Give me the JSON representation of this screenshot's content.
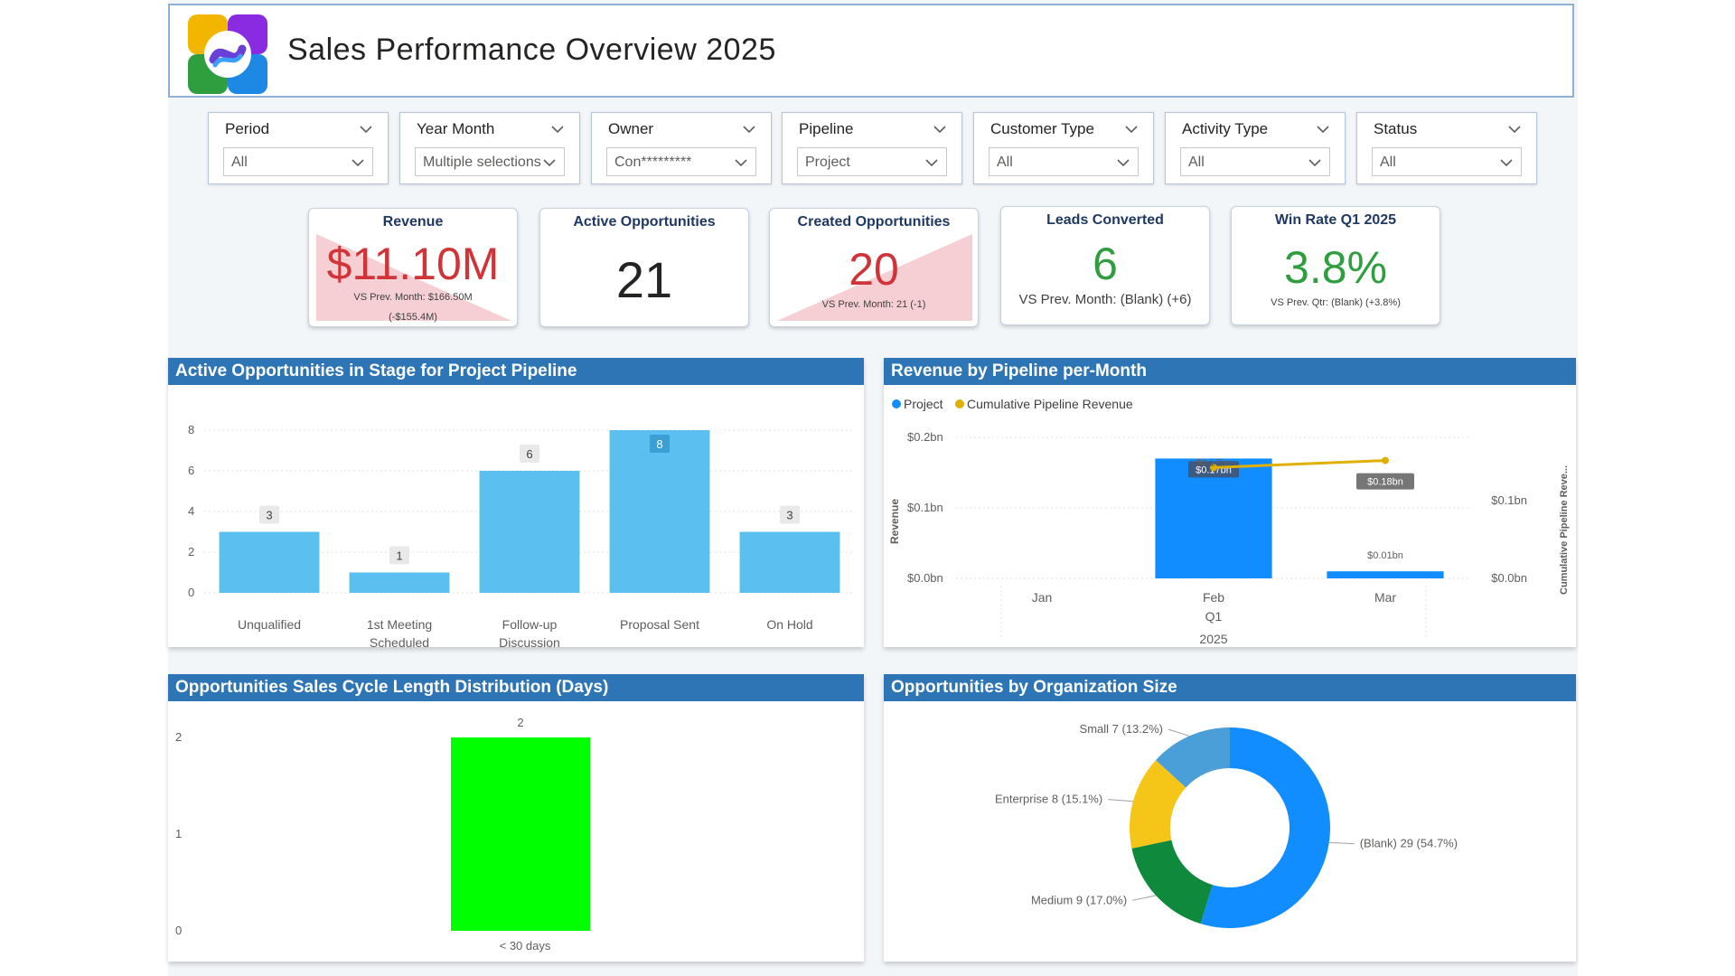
{
  "header": {
    "title": "Sales Performance Overview 2025"
  },
  "slicers": [
    {
      "label": "Period",
      "value": "All"
    },
    {
      "label": "Year Month",
      "value": "Multiple selections"
    },
    {
      "label": "Owner",
      "value": "Con*********"
    },
    {
      "label": "Pipeline",
      "value": "Project"
    },
    {
      "label": "Customer Type",
      "value": "All"
    },
    {
      "label": "Activity Type",
      "value": "All"
    },
    {
      "label": "Status",
      "value": "All"
    }
  ],
  "cards": {
    "revenue": {
      "title": "Revenue",
      "value": "$11.10M",
      "sub1": "VS Prev. Month: $166.50M",
      "sub2": "(-$155.4M)",
      "color": "#d13438"
    },
    "active": {
      "title": "Active Opportunities",
      "value": "21",
      "color": "#252423"
    },
    "created": {
      "title": "Created Opportunities",
      "value": "20",
      "sub1": "VS Prev. Month: 21 (-1)",
      "color": "#d13438"
    },
    "leads": {
      "title": "Leads Converted",
      "value": "6",
      "sub1": "VS Prev. Month: (Blank) (+6)",
      "color": "#2e9e3e"
    },
    "winrate": {
      "title": "Win Rate Q1 2025",
      "value": "3.8%",
      "sub1": "VS Prev. Qtr: (Blank) (+3.8%)",
      "color": "#2e9e3e"
    }
  },
  "panels": {
    "stage": {
      "title": "Active Opportunities in Stage for Project Pipeline"
    },
    "revenue_pipeline": {
      "title": "Revenue by Pipeline per-Month"
    },
    "cycle": {
      "title": "Opportunities Sales Cycle Length Distribution (Days)"
    },
    "orgsize": {
      "title": "Opportunities by Organization Size"
    }
  },
  "chart_data": [
    {
      "id": "stage",
      "type": "bar",
      "title": "Active Opportunities in Stage for Project Pipeline",
      "categories": [
        "Unqualified",
        "1st Meeting Scheduled",
        "Follow-up Discussion",
        "Proposal Sent",
        "On Hold"
      ],
      "category_lines": [
        [
          "Unqualified"
        ],
        [
          "1st Meeting",
          "Scheduled"
        ],
        [
          "Follow-up",
          "Discussion"
        ],
        [
          "Proposal Sent"
        ],
        [
          "On Hold"
        ]
      ],
      "values": [
        3,
        1,
        6,
        8,
        3
      ],
      "ylim": [
        0,
        8
      ],
      "yticks": [
        0,
        2,
        4,
        6,
        8
      ],
      "color": "#5bc0f0"
    },
    {
      "id": "revenue_pipeline",
      "type": "bar",
      "title": "Revenue by Pipeline per-Month",
      "legend": [
        "Project",
        "Cumulative Pipeline Revenue"
      ],
      "legend_colors": [
        "#118dff",
        "#e0b000"
      ],
      "categories": [
        "Jan",
        "Feb",
        "Mar"
      ],
      "quarter": "Q1",
      "year": "2025",
      "series": [
        {
          "name": "Project",
          "values": [
            0,
            0.17,
            0.01
          ],
          "labels": [
            "",
            "$0.17bn",
            "$0.01bn"
          ]
        },
        {
          "name": "Cumulative Pipeline Revenue",
          "values": [
            null,
            0.17,
            0.18
          ],
          "labels": [
            "",
            "$0.17bn",
            "$0.18bn"
          ]
        }
      ],
      "ylabel": "Revenue",
      "y2label": "Cumulative Pipeline Reve...",
      "yticks": [
        "$0.0bn",
        "$0.1bn",
        "$0.2bn"
      ],
      "y2ticks": [
        "$0.0bn",
        "$0.1bn"
      ],
      "ylim": [
        0,
        0.2
      ]
    },
    {
      "id": "cycle",
      "type": "bar",
      "title": "Opportunities Sales Cycle Length Distribution (Days)",
      "categories": [
        "< 30 days"
      ],
      "values": [
        2
      ],
      "ylim": [
        0,
        2
      ],
      "yticks": [
        0,
        1,
        2
      ],
      "color": "#00ff00"
    },
    {
      "id": "orgsize",
      "type": "pie",
      "title": "Opportunities by Organization Size",
      "categories": [
        "(Blank)",
        "Medium",
        "Enterprise",
        "Small"
      ],
      "values": [
        29,
        9,
        8,
        7
      ],
      "labels": [
        "(Blank) 29 (54.7%)",
        "Medium 9 (17.0%)",
        "Enterprise 8 (15.1%)",
        "Small 7 (13.2%)"
      ],
      "colors": [
        "#118dff",
        "#0f8a3c",
        "#f5c518",
        "#4a9fd8"
      ]
    }
  ]
}
